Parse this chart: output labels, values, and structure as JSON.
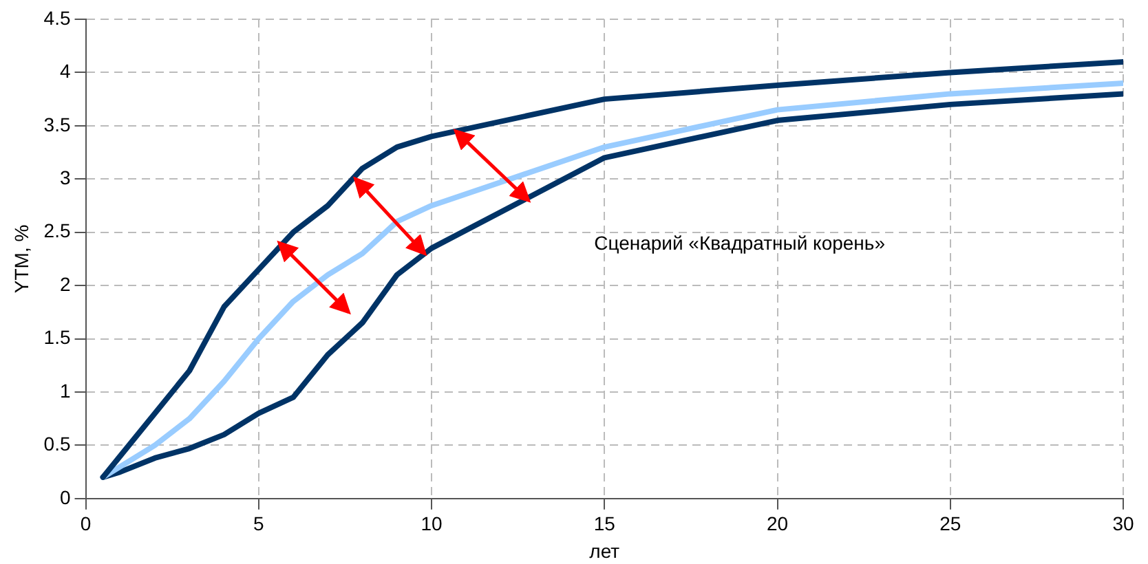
{
  "chart_data": {
    "type": "line",
    "xlabel": "лет",
    "ylabel": "YTM, %",
    "x": [
      0.5,
      1,
      2,
      3,
      4,
      5,
      6,
      7,
      8,
      9,
      10,
      15,
      20,
      25,
      30
    ],
    "series": [
      {
        "color": "#003366",
        "values": [
          0.2,
          0.4,
          0.8,
          1.2,
          1.8,
          2.15,
          2.5,
          2.75,
          3.1,
          3.3,
          3.4,
          3.75,
          3.88,
          4.0,
          4.1
        ]
      },
      {
        "color": "#99ccff",
        "values": [
          0.2,
          0.3,
          0.5,
          0.75,
          1.1,
          1.5,
          1.85,
          2.1,
          2.3,
          2.6,
          2.75,
          3.3,
          3.65,
          3.8,
          3.9
        ]
      },
      {
        "color": "#003366",
        "values": [
          0.2,
          0.25,
          0.38,
          0.47,
          0.6,
          0.8,
          0.95,
          1.35,
          1.65,
          2.1,
          2.35,
          3.2,
          3.55,
          3.7,
          3.8
        ]
      }
    ],
    "xlim": [
      0,
      30
    ],
    "xticks": [
      0,
      5,
      10,
      15,
      20,
      25,
      30
    ],
    "ylim": [
      0,
      4.5
    ],
    "yticks": [
      0,
      0.5,
      1,
      1.5,
      2,
      2.5,
      3,
      3.5,
      4,
      4.5
    ],
    "grid": true,
    "legend": false,
    "marker": "none",
    "line_style": "solid",
    "annotations": [
      "Сценарий «Квадратный корень»"
    ]
  }
}
